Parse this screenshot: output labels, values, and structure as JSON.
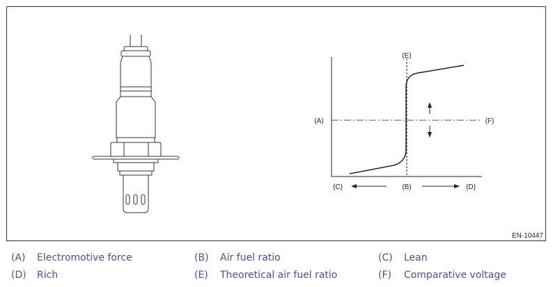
{
  "figure_code": "EN-10447",
  "diagram": {
    "labels": {
      "A": "(A)",
      "B": "(B)",
      "C": "(C)",
      "D": "(D)",
      "E": "(E)",
      "F": "(F)"
    }
  },
  "legend": [
    {
      "key": "(A)",
      "text": "Electromotive force"
    },
    {
      "key": "(B)",
      "text": "Air fuel ratio"
    },
    {
      "key": "(C)",
      "text": "Lean"
    },
    {
      "key": "(D)",
      "text": "Rich"
    },
    {
      "key": "(E)",
      "text": "Theoretical air fuel ratio"
    },
    {
      "key": "(F)",
      "text": "Comparative voltage"
    }
  ],
  "colors": {
    "legend_text": "#4a4f9e",
    "line": "#222222"
  }
}
